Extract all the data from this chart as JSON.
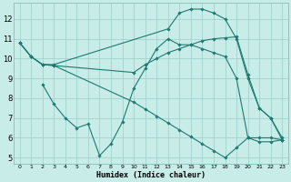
{
  "xlabel": "Humidex (Indice chaleur)",
  "bg_color": "#c8ece8",
  "grid_color": "#a0d4ce",
  "line_color": "#1e7a70",
  "xlim": [
    -0.5,
    23.5
  ],
  "ylim": [
    4.7,
    12.8
  ],
  "xticks": [
    0,
    1,
    2,
    3,
    4,
    5,
    6,
    7,
    8,
    9,
    10,
    11,
    12,
    13,
    14,
    15,
    16,
    17,
    18,
    19,
    20,
    21,
    22,
    23
  ],
  "yticks": [
    5,
    6,
    7,
    8,
    9,
    10,
    11,
    12
  ],
  "lines": [
    {
      "x": [
        0,
        1,
        2,
        3,
        13,
        14,
        15,
        16,
        17,
        18,
        19,
        20,
        21,
        22,
        23
      ],
      "y": [
        10.8,
        10.1,
        9.7,
        9.7,
        11.5,
        12.3,
        12.5,
        12.5,
        12.3,
        12.0,
        11.0,
        9.0,
        7.5,
        7.0,
        6.0
      ]
    },
    {
      "x": [
        0,
        1,
        2,
        3,
        10,
        11,
        12,
        13,
        14,
        15,
        16,
        17,
        18,
        19,
        20,
        21,
        22,
        23
      ],
      "y": [
        10.8,
        10.1,
        9.7,
        9.65,
        9.3,
        9.7,
        10.0,
        10.3,
        10.5,
        10.7,
        10.9,
        11.0,
        11.05,
        11.1,
        9.2,
        7.5,
        7.0,
        5.9
      ]
    },
    {
      "x": [
        2,
        3,
        4,
        5,
        6,
        7,
        8,
        9,
        10,
        11,
        12,
        13,
        14,
        15,
        16,
        17,
        18,
        19,
        20,
        21,
        22,
        23
      ],
      "y": [
        8.7,
        7.7,
        7.0,
        6.5,
        6.7,
        5.1,
        5.7,
        6.8,
        8.5,
        9.5,
        10.5,
        11.0,
        10.7,
        10.7,
        10.5,
        10.3,
        10.1,
        9.0,
        6.0,
        5.8,
        5.8,
        5.9
      ]
    },
    {
      "x": [
        0,
        1,
        2,
        3,
        10,
        11,
        12,
        13,
        14,
        15,
        16,
        17,
        18,
        19,
        20,
        21,
        22,
        23
      ],
      "y": [
        10.8,
        10.1,
        9.7,
        9.65,
        7.8,
        7.45,
        7.1,
        6.75,
        6.4,
        6.05,
        5.7,
        5.35,
        5.0,
        5.5,
        6.0,
        6.0,
        6.0,
        5.9
      ]
    }
  ]
}
